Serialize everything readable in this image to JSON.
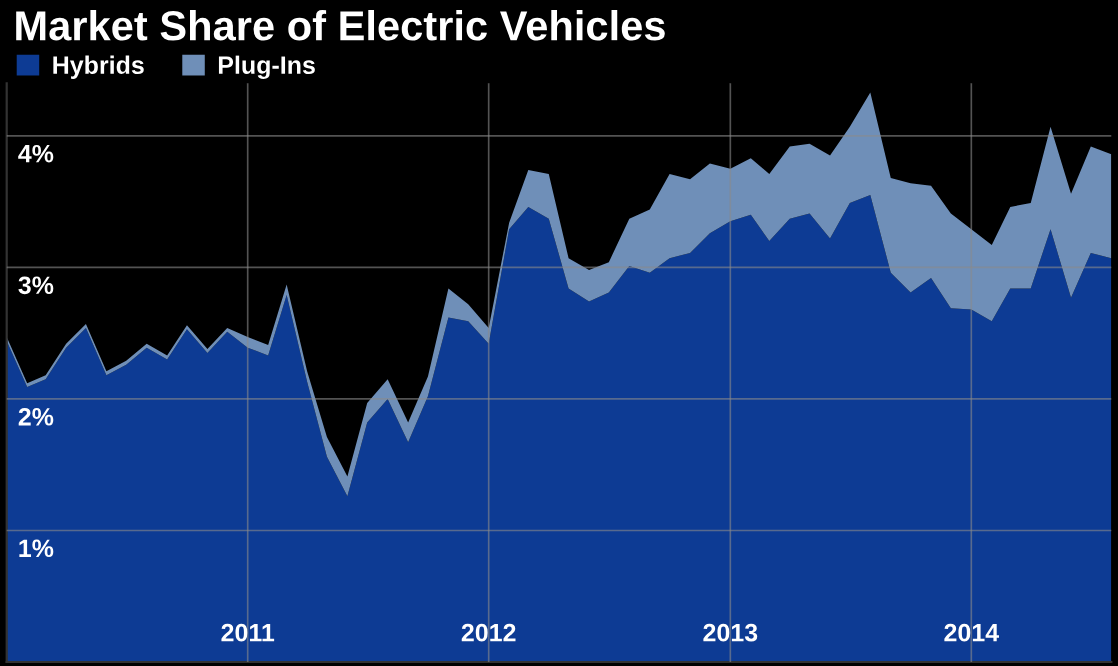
{
  "chart_data": {
    "type": "area",
    "title": "Market Share of Electric Vehicles",
    "stacked": true,
    "x": [
      "2010-01",
      "2010-02",
      "2010-03",
      "2010-04",
      "2010-05",
      "2010-06",
      "2010-07",
      "2010-08",
      "2010-09",
      "2010-10",
      "2010-11",
      "2010-12",
      "2011-01",
      "2011-02",
      "2011-03",
      "2011-04",
      "2011-05",
      "2011-06",
      "2011-07",
      "2011-08",
      "2011-09",
      "2011-10",
      "2011-11",
      "2011-12",
      "2012-01",
      "2012-02",
      "2012-03",
      "2012-04",
      "2012-05",
      "2012-06",
      "2012-07",
      "2012-08",
      "2012-09",
      "2012-10",
      "2012-11",
      "2012-12",
      "2013-01",
      "2013-02",
      "2013-03",
      "2013-04",
      "2013-05",
      "2013-06",
      "2013-07",
      "2013-08",
      "2013-09",
      "2013-10",
      "2013-11",
      "2013-12",
      "2014-01",
      "2014-02",
      "2014-03",
      "2014-04",
      "2014-05",
      "2014-06",
      "2014-07",
      "2014-08"
    ],
    "series": [
      {
        "name": "Hybrids",
        "color": "#0d3b94",
        "values": [
          2.44,
          2.09,
          2.15,
          2.39,
          2.54,
          2.18,
          2.26,
          2.39,
          2.3,
          2.53,
          2.35,
          2.51,
          2.39,
          2.33,
          2.79,
          2.13,
          1.56,
          1.26,
          1.82,
          2.0,
          1.67,
          2.02,
          2.62,
          2.59,
          2.42,
          3.29,
          3.46,
          3.37,
          2.84,
          2.74,
          2.81,
          3.01,
          2.96,
          3.07,
          3.11,
          3.26,
          3.35,
          3.4,
          3.2,
          3.37,
          3.41,
          3.22,
          3.49,
          3.55,
          2.96,
          2.81,
          2.92,
          2.69,
          2.68,
          2.59,
          2.84,
          2.84,
          3.29,
          2.77,
          3.11,
          3.07
        ]
      },
      {
        "name": "Plug-Ins",
        "color": "#6f8fb8",
        "values": [
          0.03,
          0.03,
          0.03,
          0.03,
          0.03,
          0.03,
          0.03,
          0.03,
          0.03,
          0.03,
          0.03,
          0.03,
          0.08,
          0.08,
          0.08,
          0.08,
          0.15,
          0.15,
          0.15,
          0.15,
          0.15,
          0.15,
          0.22,
          0.13,
          0.12,
          0.05,
          0.28,
          0.34,
          0.23,
          0.24,
          0.23,
          0.36,
          0.48,
          0.64,
          0.56,
          0.53,
          0.4,
          0.43,
          0.51,
          0.55,
          0.53,
          0.63,
          0.58,
          0.78,
          0.72,
          0.83,
          0.7,
          0.72,
          0.61,
          0.58,
          0.62,
          0.65,
          0.78,
          0.79,
          0.81,
          0.79
        ]
      }
    ],
    "xlim": [
      "2010-01",
      "2014-08"
    ],
    "xticks": [
      {
        "value": "2011-01",
        "label": "2011"
      },
      {
        "value": "2012-01",
        "label": "2012"
      },
      {
        "value": "2013-01",
        "label": "2013"
      },
      {
        "value": "2014-01",
        "label": "2014"
      }
    ],
    "ylim": [
      0,
      4.4
    ],
    "yticks": [
      {
        "value": 1,
        "label": "1%"
      },
      {
        "value": 2,
        "label": "2%"
      },
      {
        "value": 3,
        "label": "3%"
      },
      {
        "value": 4,
        "label": "4%"
      }
    ],
    "grid": true,
    "legend": "top left"
  }
}
